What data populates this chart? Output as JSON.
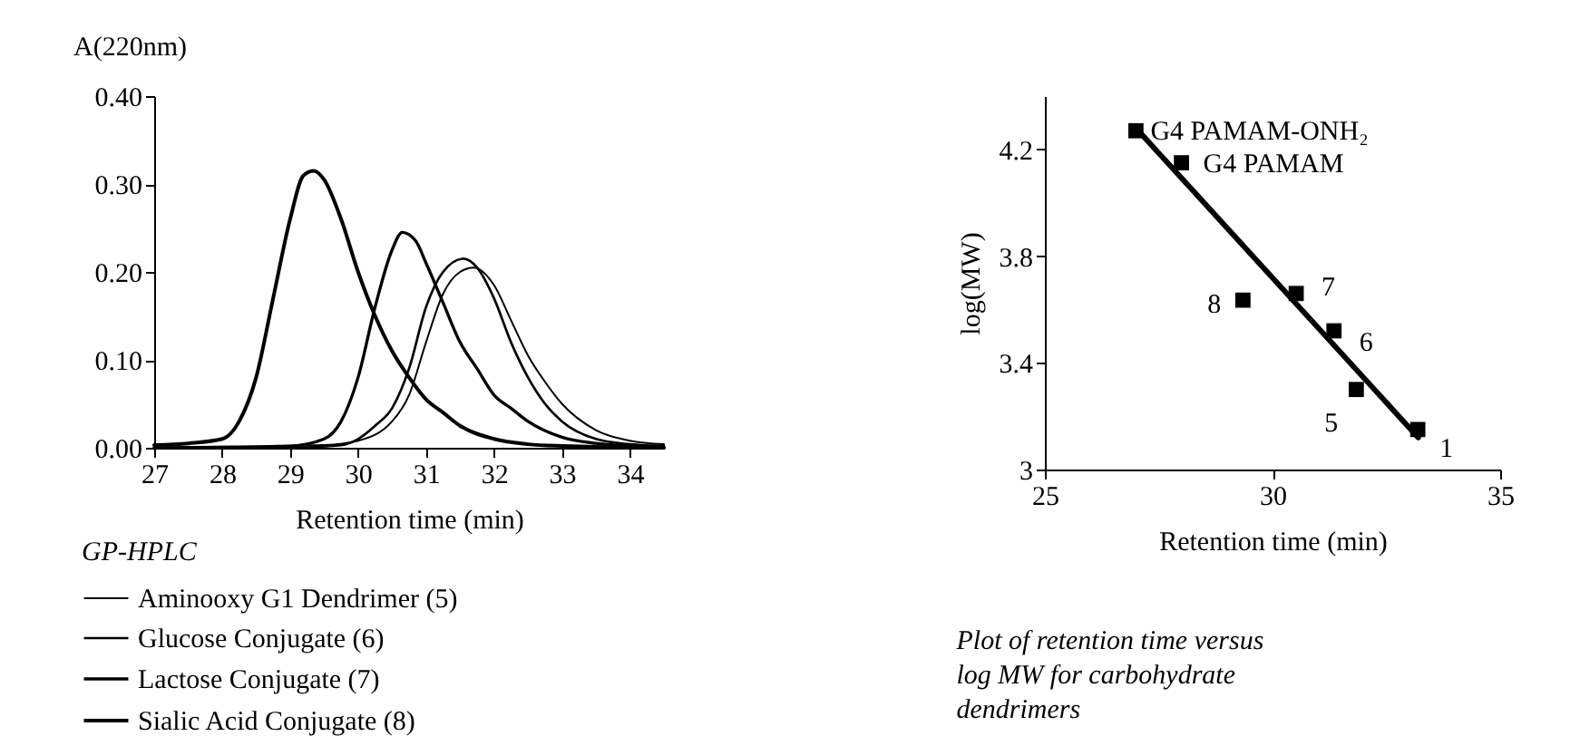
{
  "chart_data": [
    {
      "type": "line",
      "xlabel": "Retention time (min)",
      "ylabel": "A(220nm)",
      "legend_title": "GP-HPLC",
      "legend": "bottom left",
      "xlim": [
        27,
        34.5
      ],
      "xticks": [
        27,
        28,
        29,
        30,
        31,
        32,
        33,
        34
      ],
      "ylim": [
        0,
        0.4
      ],
      "yticks": [
        {
          "value": 0,
          "label": "0.00"
        },
        {
          "value": 0.1,
          "label": "0.10"
        },
        {
          "value": 0.2,
          "label": "0.20"
        },
        {
          "value": 0.3,
          "label": "0.30"
        },
        {
          "value": 0.4,
          "label": "0.40"
        }
      ],
      "series": [
        {
          "name": "Aminooxy G1 Dendrimer (5)",
          "color": "#000000",
          "x": [
            27,
            29.5,
            30,
            30.5,
            30.75,
            31,
            31.25,
            31.5,
            31.7,
            32,
            32.25,
            32.5,
            32.75,
            33,
            33.5,
            34,
            34.5
          ],
          "values": [
            0,
            0.003,
            0.008,
            0.03,
            0.06,
            0.12,
            0.175,
            0.2,
            0.205,
            0.185,
            0.145,
            0.105,
            0.075,
            0.05,
            0.02,
            0.008,
            0.004
          ]
        },
        {
          "name": "Glucose Conjugate (6)",
          "color": "#000000",
          "x": [
            27,
            29,
            29.75,
            30,
            30.25,
            30.5,
            30.75,
            31,
            31.25,
            31.55,
            31.75,
            32,
            32.25,
            32.5,
            32.75,
            33,
            33.5,
            34,
            34.5
          ],
          "values": [
            0,
            0,
            0.003,
            0.01,
            0.025,
            0.045,
            0.09,
            0.16,
            0.2,
            0.215,
            0.205,
            0.17,
            0.12,
            0.08,
            0.05,
            0.03,
            0.01,
            0.004,
            0.002
          ]
        },
        {
          "name": "Lactose Conjugate (7)",
          "color": "#000000",
          "x": [
            27,
            29,
            29.5,
            29.75,
            30,
            30.25,
            30.5,
            30.65,
            30.85,
            31,
            31.25,
            31.5,
            31.75,
            32,
            32.25,
            32.5,
            33,
            33.5,
            34,
            34.5
          ],
          "values": [
            0,
            0.002,
            0.01,
            0.03,
            0.08,
            0.16,
            0.225,
            0.245,
            0.235,
            0.21,
            0.165,
            0.12,
            0.09,
            0.06,
            0.045,
            0.03,
            0.012,
            0.005,
            0.002,
            0
          ]
        },
        {
          "name": "Sialic Acid Conjugate (8)",
          "color": "#000000",
          "x": [
            27,
            27.5,
            28,
            28.25,
            28.5,
            28.75,
            29,
            29.2,
            29.35,
            29.5,
            29.75,
            30,
            30.25,
            30.5,
            30.75,
            31,
            31.25,
            31.5,
            32,
            32.5,
            33,
            34.5
          ],
          "values": [
            0.003,
            0.005,
            0.01,
            0.03,
            0.08,
            0.17,
            0.26,
            0.31,
            0.315,
            0.305,
            0.26,
            0.2,
            0.15,
            0.11,
            0.08,
            0.055,
            0.04,
            0.025,
            0.01,
            0.004,
            0.002,
            0
          ]
        }
      ]
    },
    {
      "type": "scatter",
      "xlabel": "Retention time (min)",
      "ylabel": "log(MW)",
      "xlim": [
        25,
        35
      ],
      "xticks": [
        25,
        30,
        35
      ],
      "ylim": [
        3,
        4.4
      ],
      "yticks": [
        3,
        3.4,
        3.8,
        4.2
      ],
      "series": [
        {
          "color": "#000000",
          "marker": "square",
          "x": [
            27.0,
            28.0,
            29.35,
            30.52,
            31.35,
            31.84,
            33.19
          ],
          "values": [
            4.27,
            4.15,
            3.635,
            3.66,
            3.52,
            3.3,
            3.15
          ]
        },
        {
          "type": "line",
          "color": "#000000",
          "x": [
            27.0,
            33.2
          ],
          "values": [
            4.28,
            3.12
          ]
        }
      ],
      "annotations": [
        {
          "text": "G4 PAMAM-ONH₂",
          "x": 27.0,
          "y": 4.27
        },
        {
          "text": "G4 PAMAM",
          "x": 28.0,
          "y": 4.15
        },
        {
          "text": "8",
          "x": 29.35,
          "y": 3.635
        },
        {
          "text": "7",
          "x": 30.52,
          "y": 3.66
        },
        {
          "text": "6",
          "x": 31.35,
          "y": 3.52
        },
        {
          "text": "5",
          "x": 31.84,
          "y": 3.3
        },
        {
          "text": "1",
          "x": 33.19,
          "y": 3.15
        },
        "Plot of retention time versus log MW for carbohydrate dendrimers"
      ]
    }
  ]
}
